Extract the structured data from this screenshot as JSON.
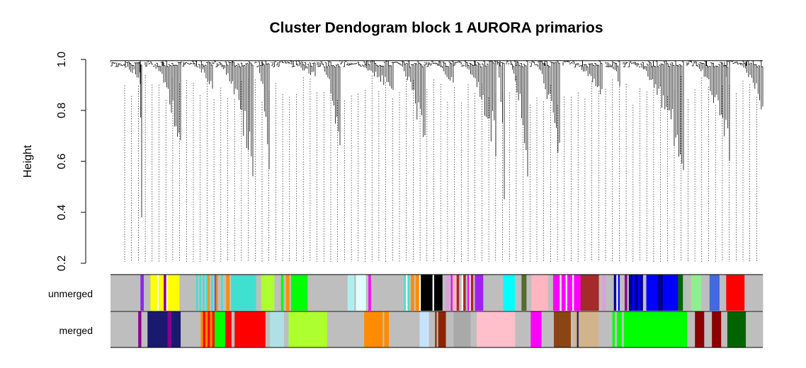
{
  "chart_data": {
    "type": "dendrogram",
    "title": "Cluster Dendogram block 1 AURORA primarios",
    "ylabel": "Height",
    "ylim": [
      0.2,
      1.0
    ],
    "yticks": [
      "0.2",
      "0.4",
      "0.6",
      "0.8",
      "1.0"
    ],
    "tracks": [
      {
        "name": "unmerged",
        "segments": [
          [
            "#bebebe",
            36
          ],
          [
            "#8a2be2",
            4
          ],
          [
            "#bebebe",
            8
          ],
          [
            "#ffff00",
            8
          ],
          [
            "#ffffff",
            2
          ],
          [
            "#ffff00",
            6
          ],
          [
            "#8b008b",
            3
          ],
          [
            "#ffffff",
            2
          ],
          [
            "#ffff00",
            14
          ],
          [
            "#bebebe",
            18
          ],
          [
            "#bebebe",
            2
          ],
          [
            "#40e0d0",
            2
          ],
          [
            "#bebebe",
            2
          ],
          [
            "#40e0d0",
            2
          ],
          [
            "#bebebe",
            2
          ],
          [
            "#40e0d0",
            2
          ],
          [
            "#bebebe",
            2
          ],
          [
            "#40e0d0",
            2
          ],
          [
            "#ff8c00",
            2
          ],
          [
            "#bebebe",
            2
          ],
          [
            "#40e0d0",
            2
          ],
          [
            "#bebebe",
            2
          ],
          [
            "#4169e1",
            2
          ],
          [
            "#ff8c00",
            2
          ],
          [
            "#bebebe",
            4
          ],
          [
            "#40e0d0",
            2
          ],
          [
            "#bebebe",
            4
          ],
          [
            "#ff8c00",
            4
          ],
          [
            "#bebebe",
            2
          ],
          [
            "#40e0d0",
            30
          ],
          [
            "#bebebe",
            6
          ],
          [
            "#adff2f",
            16
          ],
          [
            "#bebebe",
            8
          ],
          [
            "#00ff00",
            3
          ],
          [
            "#bebebe",
            3
          ],
          [
            "#ff8c00",
            4
          ],
          [
            "#bebebe",
            2
          ],
          [
            "#00ff00",
            20
          ],
          [
            "#bebebe",
            48
          ],
          [
            "#afeeee",
            8
          ],
          [
            "#bebebe",
            2
          ],
          [
            "#e0ffff",
            12
          ],
          [
            "#bebebe",
            3
          ],
          [
            "#ff00ff",
            3
          ],
          [
            "#bebebe",
            40
          ],
          [
            "#40e0d0",
            2
          ],
          [
            "#ffffff",
            2
          ],
          [
            "#40e0d0",
            2
          ],
          [
            "#bebebe",
            2
          ],
          [
            "#ff8c00",
            4
          ],
          [
            "#bebebe",
            2
          ],
          [
            "#ff8c00",
            4
          ],
          [
            "#ffffff",
            2
          ],
          [
            "#000000",
            14
          ],
          [
            "#ffffff",
            2
          ],
          [
            "#000000",
            10
          ],
          [
            "#bebebe",
            4
          ],
          [
            "#dda0dd",
            4
          ],
          [
            "#bebebe",
            2
          ],
          [
            "#ff00ff",
            2
          ],
          [
            "#bebebe",
            2
          ],
          [
            "#ffb6c1",
            3
          ],
          [
            "#a52a2a",
            3
          ],
          [
            "#bebebe",
            3
          ],
          [
            "#ffffff",
            2
          ],
          [
            "#a52a2a",
            3
          ],
          [
            "#bebebe",
            2
          ],
          [
            "#ff00ff",
            2
          ],
          [
            "#ffffff",
            2
          ],
          [
            "#a52a2a",
            3
          ],
          [
            "#bebebe",
            2
          ],
          [
            "#a020f0",
            10
          ],
          [
            "#bebebe",
            24
          ],
          [
            "#00ffff",
            14
          ],
          [
            "#bebebe",
            8
          ],
          [
            "#556b2f",
            6
          ],
          [
            "#bebebe",
            6
          ],
          [
            "#ffb6c1",
            20
          ],
          [
            "#bebebe",
            6
          ],
          [
            "#ff00ff",
            8
          ],
          [
            "#ffffff",
            2
          ],
          [
            "#ff00ff",
            5
          ],
          [
            "#ffffff",
            2
          ],
          [
            "#ff00ff",
            6
          ],
          [
            "#ffffff",
            2
          ],
          [
            "#ff00ff",
            8
          ],
          [
            "#a52a2a",
            22
          ],
          [
            "#bebebe",
            4
          ],
          [
            "#dda0dd",
            4
          ],
          [
            "#bebebe",
            10
          ],
          [
            "#00008b",
            3
          ],
          [
            "#ffffff",
            2
          ],
          [
            "#0000ff",
            2
          ],
          [
            "#bebebe",
            6
          ],
          [
            "#8b008b",
            3
          ],
          [
            "#bebebe",
            2
          ],
          [
            "#00008b",
            4
          ],
          [
            "#0000ff",
            3
          ],
          [
            "#00008b",
            4
          ],
          [
            "#0000ff",
            3
          ],
          [
            "#00008b",
            3
          ],
          [
            "#bebebe",
            4
          ],
          [
            "#0000ff",
            14
          ],
          [
            "#00008b",
            6
          ],
          [
            "#0000ff",
            18
          ],
          [
            "#006400",
            6
          ],
          [
            "#bebebe",
            10
          ],
          [
            "#90ee90",
            12
          ],
          [
            "#bebebe",
            10
          ],
          [
            "#4169e1",
            12
          ],
          [
            "#bebebe",
            8
          ],
          [
            "#ff0000",
            22
          ],
          [
            "#bebebe",
            22
          ]
        ]
      },
      {
        "name": "merged",
        "segments": [
          [
            "#bebebe",
            36
          ],
          [
            "#8b008b",
            4
          ],
          [
            "#bebebe",
            8
          ],
          [
            "#191970",
            26
          ],
          [
            "#8b008b",
            5
          ],
          [
            "#191970",
            12
          ],
          [
            "#bebebe",
            26
          ],
          [
            "#ff8c00",
            3
          ],
          [
            "#ff0000",
            3
          ],
          [
            "#ff8c00",
            3
          ],
          [
            "#ff0000",
            3
          ],
          [
            "#ff8c00",
            3
          ],
          [
            "#ff0000",
            3
          ],
          [
            "#00ff00",
            14
          ],
          [
            "#ff0000",
            8
          ],
          [
            "#bebebe",
            4
          ],
          [
            "#ff0000",
            40
          ],
          [
            "#bebebe",
            6
          ],
          [
            "#b0e0e6",
            18
          ],
          [
            "#bebebe",
            6
          ],
          [
            "#adff2f",
            50
          ],
          [
            "#bebebe",
            48
          ],
          [
            "#ff8c00",
            24
          ],
          [
            "#bebebe",
            2
          ],
          [
            "#ff8c00",
            6
          ],
          [
            "#bebebe",
            40
          ],
          [
            "#c6e2ff",
            12
          ],
          [
            "#bebebe",
            8
          ],
          [
            "#8b2500",
            2
          ],
          [
            "#bebebe",
            2
          ],
          [
            "#8b2500",
            10
          ],
          [
            "#bebebe",
            10
          ],
          [
            "#a9a9a9",
            22
          ],
          [
            "#bebebe",
            8
          ],
          [
            "#ffc0cb",
            50
          ],
          [
            "#bebebe",
            20
          ],
          [
            "#ff00ff",
            14
          ],
          [
            "#bebebe",
            16
          ],
          [
            "#8b4513",
            22
          ],
          [
            "#bebebe",
            4
          ],
          [
            "#d2b48c",
            4
          ],
          [
            "#191970",
            2
          ],
          [
            "#d2b48c",
            26
          ],
          [
            "#bebebe",
            18
          ],
          [
            "#00ff00",
            3
          ],
          [
            "#bebebe",
            3
          ],
          [
            "#00ff00",
            6
          ],
          [
            "#bebebe",
            3
          ],
          [
            "#00ff00",
            82
          ],
          [
            "#bebebe",
            10
          ],
          [
            "#8b0000",
            12
          ],
          [
            "#bebebe",
            10
          ],
          [
            "#8b0000",
            12
          ],
          [
            "#bebebe",
            8
          ],
          [
            "#006400",
            24
          ],
          [
            "#bebebe",
            22
          ]
        ]
      }
    ]
  }
}
